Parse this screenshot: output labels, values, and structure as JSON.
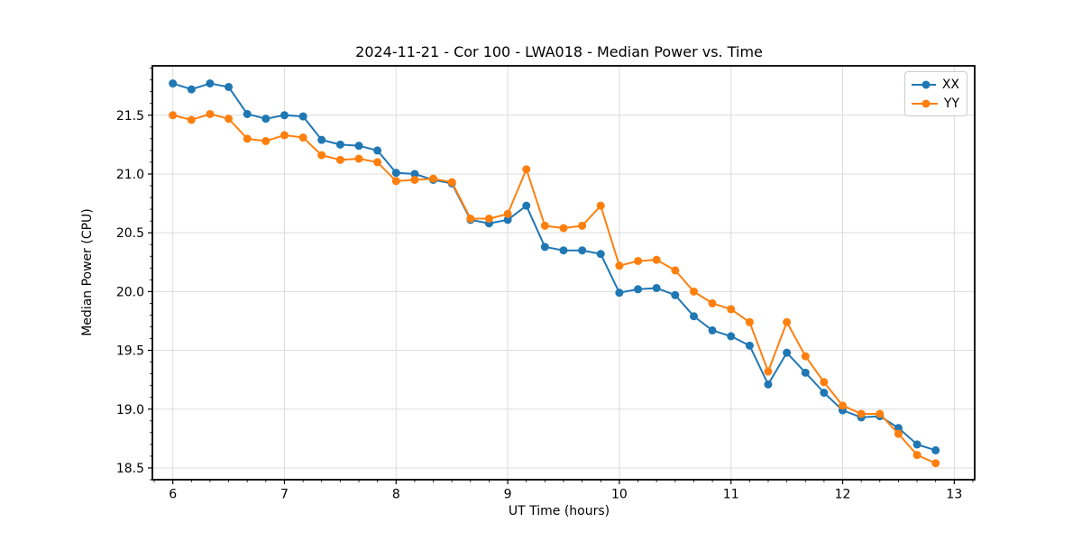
{
  "figure": {
    "title": "2024-11-21 - Cor 100 - LWA018 - Median Power vs. Time"
  },
  "chart_data": {
    "type": "line",
    "title": "2024-11-21 - Cor 100 - LWA018 - Median Power vs. Time",
    "xlabel": "UT Time (hours)",
    "ylabel": "Median Power (CPU)",
    "xlim": [
      5.817,
      13.183
    ],
    "ylim": [
      18.4,
      21.92
    ],
    "grid": true,
    "legend_position": "upper right",
    "grid_color": "#dcdcdc",
    "spine_color": "#000000",
    "x_ticks": [
      6,
      7,
      8,
      9,
      10,
      11,
      12,
      13
    ],
    "x_tick_labels": [
      "6",
      "7",
      "8",
      "9",
      "10",
      "11",
      "12",
      "13"
    ],
    "y_ticks": [
      18.5,
      19.0,
      19.5,
      20.0,
      20.5,
      21.0,
      21.5
    ],
    "y_tick_labels": [
      "18.5",
      "19.0",
      "19.5",
      "20.0",
      "20.5",
      "21.0",
      "21.5"
    ],
    "x": [
      6.0,
      6.167,
      6.333,
      6.5,
      6.667,
      6.833,
      7.0,
      7.167,
      7.333,
      7.5,
      7.667,
      7.833,
      8.0,
      8.167,
      8.333,
      8.5,
      8.667,
      8.833,
      9.0,
      9.167,
      9.333,
      9.5,
      9.667,
      9.833,
      10.0,
      10.167,
      10.333,
      10.5,
      10.667,
      10.833,
      11.0,
      11.167,
      11.333,
      11.5,
      11.667,
      11.833,
      12.0,
      12.167,
      12.333,
      12.5,
      12.667,
      12.833
    ],
    "series": [
      {
        "name": "XX",
        "color": "#1f77b4",
        "values": [
          21.77,
          21.72,
          21.77,
          21.74,
          21.51,
          21.47,
          21.5,
          21.49,
          21.29,
          21.25,
          21.24,
          21.2,
          21.01,
          21.0,
          20.95,
          20.92,
          20.61,
          20.58,
          20.61,
          20.73,
          20.38,
          20.35,
          20.35,
          20.32,
          19.99,
          20.02,
          20.03,
          19.97,
          19.79,
          19.67,
          19.62,
          19.54,
          19.21,
          19.48,
          19.31,
          19.14,
          18.99,
          18.93,
          18.94,
          18.84,
          18.7,
          18.65
        ]
      },
      {
        "name": "YY",
        "color": "#ff7f0e",
        "values": [
          21.5,
          21.46,
          21.51,
          21.47,
          21.3,
          21.28,
          21.33,
          21.31,
          21.16,
          21.12,
          21.13,
          21.1,
          20.94,
          20.95,
          20.96,
          20.93,
          20.62,
          20.62,
          20.66,
          21.04,
          20.56,
          20.54,
          20.56,
          20.73,
          20.22,
          20.26,
          20.27,
          20.18,
          20.0,
          19.9,
          19.85,
          19.74,
          19.32,
          19.74,
          19.45,
          19.23,
          19.03,
          18.96,
          18.96,
          18.79,
          18.61,
          18.54
        ]
      }
    ]
  }
}
